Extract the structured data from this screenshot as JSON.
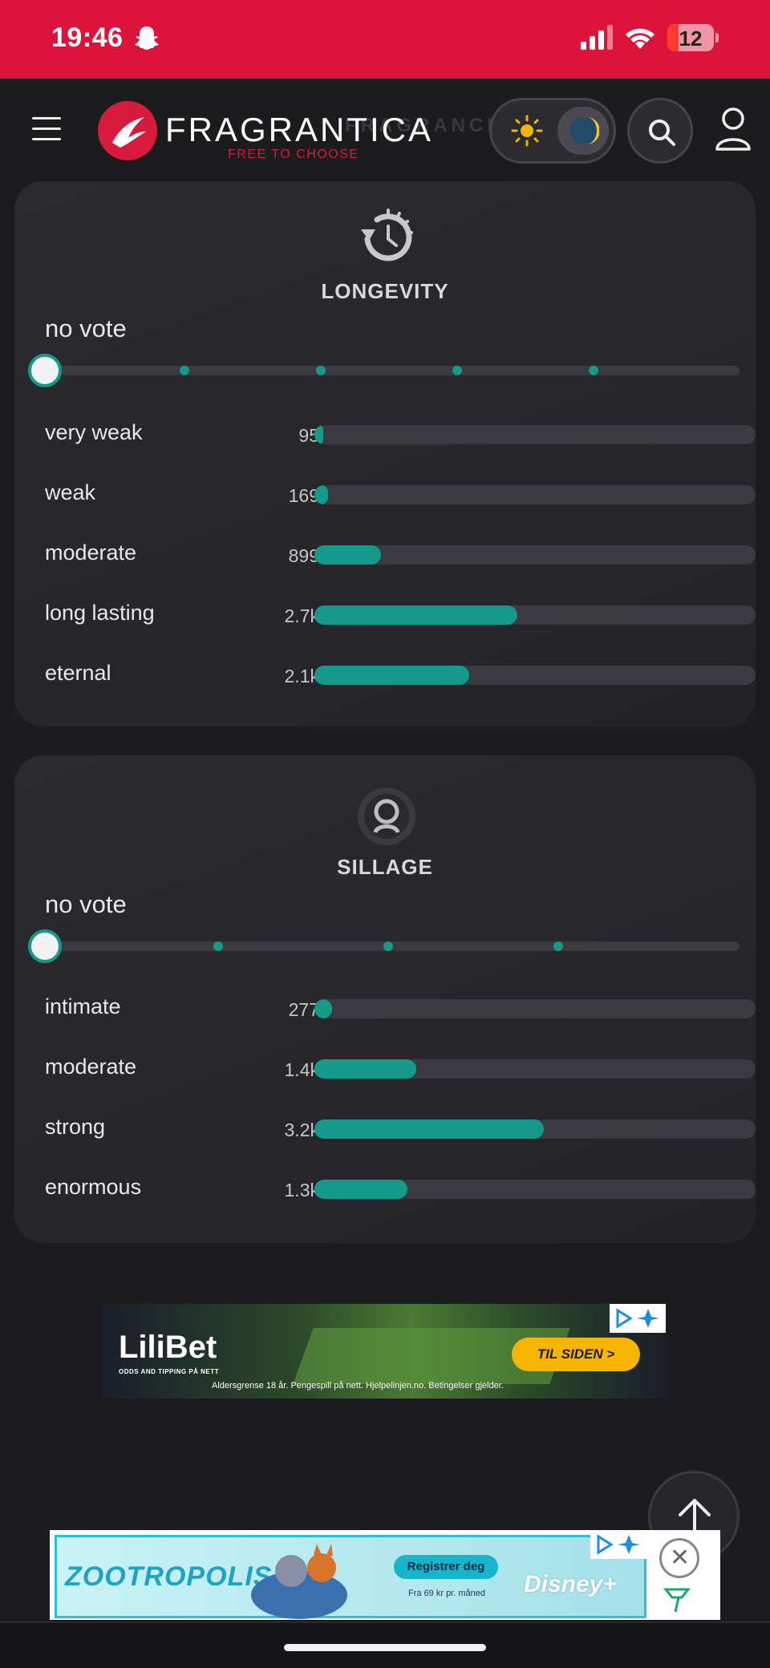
{
  "status_bar": {
    "time": "19:46",
    "battery": "12",
    "battery_color": "#ff3b30"
  },
  "header": {
    "logo_text": "FRAGRANTICA",
    "logo_ghost": "FRAGRANCE",
    "tagline": "FREE TO CHOOSE",
    "brand_color": "#d81b3c"
  },
  "longevity": {
    "title": "LONGEVITY",
    "vote_label": "no vote",
    "slider_steps": 5,
    "rows": [
      {
        "label": "very weak",
        "count": "95",
        "percent": 2
      },
      {
        "label": "weak",
        "count": "169",
        "percent": 3
      },
      {
        "label": "moderate",
        "count": "899",
        "percent": 15
      },
      {
        "label": "long lasting",
        "count": "2.7k",
        "percent": 46
      },
      {
        "label": "eternal",
        "count": "2.1k",
        "percent": 35
      }
    ]
  },
  "sillage": {
    "title": "SILLAGE",
    "vote_label": "no vote",
    "slider_steps": 4,
    "rows": [
      {
        "label": "intimate",
        "count": "277",
        "percent": 4
      },
      {
        "label": "moderate",
        "count": "1.4k",
        "percent": 23
      },
      {
        "label": "strong",
        "count": "3.2k",
        "percent": 52
      },
      {
        "label": "enormous",
        "count": "1.3k",
        "percent": 21
      }
    ]
  },
  "ad_banner": {
    "brand": "LiliBet",
    "subtitle": "ODDS AND TIPPING PÅ NETT",
    "button": "TIL SIDEN >",
    "disclaimer": "Aldersgrense 18 år. Pengespill på nett. Hjelpelinjen.no. Betingelser gjelder."
  },
  "bottom_ad": {
    "title": "ZOOTROPOLIS",
    "button": "Registrer deg",
    "price": "Fra 69 kr pr. måned",
    "brand": "Disney+"
  },
  "accent_color": "#14998a"
}
